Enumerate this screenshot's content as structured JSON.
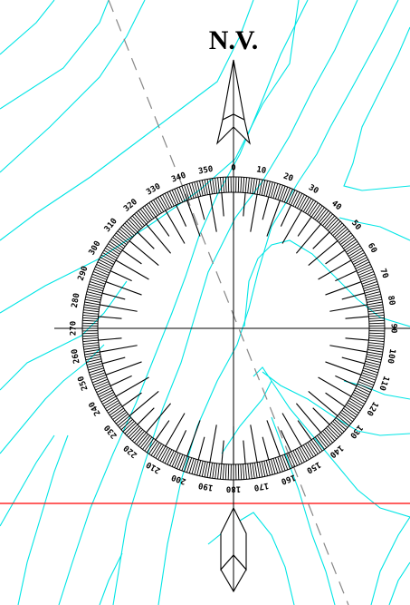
{
  "north_label": "N.V.",
  "degree_labels": [
    "0",
    "10",
    "20",
    "30",
    "40",
    "50",
    "60",
    "70",
    "80",
    "90",
    "100",
    "110",
    "120",
    "130",
    "140",
    "150",
    "160",
    "170",
    "180",
    "190",
    "200",
    "210",
    "220",
    "230",
    "240",
    "250",
    "260",
    "270",
    "280",
    "290",
    "300",
    "310",
    "320",
    "330",
    "340",
    "350"
  ],
  "colors": {
    "contour": "#00e5e5",
    "reference_line": "#ff0000",
    "dashed_line": "#888888"
  }
}
